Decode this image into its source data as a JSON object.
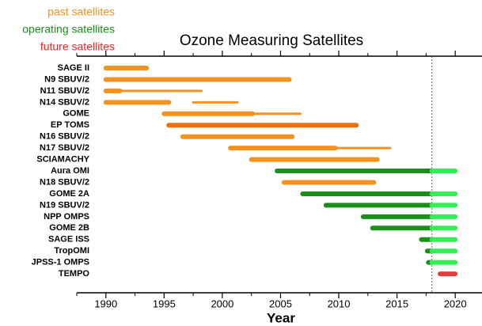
{
  "chart_data": {
    "type": "timeline",
    "title": "Ozone Measuring Satellites",
    "x_label": "Year",
    "xlim": [
      1987.5,
      2022.3
    ],
    "xticks": [
      1990,
      1995,
      2000,
      2005,
      2010,
      2015,
      2020
    ],
    "xminorticks": [
      1987.5,
      1992.5,
      1997.5,
      2002.5,
      2007.5,
      2012.5,
      2017.5,
      2022.5
    ],
    "now_line": 2018,
    "series": [
      {
        "name": "past satellites",
        "color": "#f5921e"
      },
      {
        "name": "operating satellites",
        "color": "#1a8f1a"
      },
      {
        "name": "future satellites",
        "color": "#ee2222"
      }
    ],
    "rows": [
      {
        "label": "SAGE II",
        "segments": [
          {
            "start": 1990,
            "end": 1993.5,
            "color": "#f5921e",
            "width": "thick"
          }
        ]
      },
      {
        "label": "N9 SBUV/2",
        "segments": [
          {
            "start": 1990,
            "end": 2005.75,
            "color": "#f5921e",
            "width": "thick"
          }
        ]
      },
      {
        "label": "N11 SBUV/2",
        "segments": [
          {
            "start": 1990,
            "end": 1991.2,
            "color": "#f5921e",
            "width": "thick"
          },
          {
            "start": 1991.2,
            "end": 1998.2,
            "color": "#f5921e",
            "width": "thin"
          }
        ]
      },
      {
        "label": "N14 SBUV/2",
        "segments": [
          {
            "start": 1990,
            "end": 1995.4,
            "color": "#f5921e",
            "width": "thick"
          },
          {
            "start": 1997.5,
            "end": 2001.3,
            "color": "#f5921e",
            "width": "thin"
          }
        ]
      },
      {
        "label": "GOME",
        "segments": [
          {
            "start": 1995,
            "end": 2002.6,
            "color": "#f5921e",
            "width": "thick"
          },
          {
            "start": 2002.6,
            "end": 2006.7,
            "color": "#f5921e",
            "width": "thin"
          }
        ]
      },
      {
        "label": "EP TOMS",
        "segments": [
          {
            "start": 1995.4,
            "end": 2011.5,
            "color": "#ec700e",
            "width": "thick"
          }
        ]
      },
      {
        "label": "N16 SBUV/2",
        "segments": [
          {
            "start": 1996.6,
            "end": 2006,
            "color": "#f5921e",
            "width": "thick"
          }
        ]
      },
      {
        "label": "N17 SBUV/2",
        "segments": [
          {
            "start": 2000.7,
            "end": 2009.7,
            "color": "#f5921e",
            "width": "thick"
          },
          {
            "start": 2009.7,
            "end": 2014.4,
            "color": "#f5921e",
            "width": "thin"
          }
        ]
      },
      {
        "label": "SCIAMACHY",
        "segments": [
          {
            "start": 2002.5,
            "end": 2013.3,
            "color": "#f5921e",
            "width": "thick"
          }
        ]
      },
      {
        "label": "Aura OMI",
        "segments": [
          {
            "start": 2004.7,
            "end": 2018,
            "color": "#1a8f1a",
            "width": "thick"
          },
          {
            "start": 2018,
            "end": 2020,
            "color": "#33ee55",
            "width": "thick"
          }
        ]
      },
      {
        "label": "N18 SBUV/2",
        "segments": [
          {
            "start": 2005.3,
            "end": 2013,
            "color": "#f5921e",
            "width": "thick"
          }
        ]
      },
      {
        "label": "GOME 2A",
        "segments": [
          {
            "start": 2006.9,
            "end": 2018,
            "color": "#1a8f1a",
            "width": "thick"
          },
          {
            "start": 2018,
            "end": 2020,
            "color": "#33ee55",
            "width": "thick"
          }
        ]
      },
      {
        "label": "N19 SBUV/2",
        "segments": [
          {
            "start": 2008.9,
            "end": 2018,
            "color": "#1a8f1a",
            "width": "thick"
          },
          {
            "start": 2018,
            "end": 2020,
            "color": "#33ee55",
            "width": "thick"
          }
        ]
      },
      {
        "label": "NPP OMPS",
        "segments": [
          {
            "start": 2012.1,
            "end": 2018,
            "color": "#1a8f1a",
            "width": "thick"
          },
          {
            "start": 2018,
            "end": 2020,
            "color": "#33ee55",
            "width": "thick"
          }
        ]
      },
      {
        "label": "GOME 2B",
        "segments": [
          {
            "start": 2012.9,
            "end": 2018,
            "color": "#1a8f1a",
            "width": "thick"
          },
          {
            "start": 2018,
            "end": 2020,
            "color": "#33ee55",
            "width": "thick"
          }
        ]
      },
      {
        "label": "SAGE ISS",
        "segments": [
          {
            "start": 2017.1,
            "end": 2018,
            "color": "#1a8f1a",
            "width": "thick"
          },
          {
            "start": 2018,
            "end": 2020,
            "color": "#33ee55",
            "width": "thick"
          }
        ]
      },
      {
        "label": "TropOMI",
        "segments": [
          {
            "start": 2017.6,
            "end": 2018,
            "color": "#1a8f1a",
            "width": "thick"
          },
          {
            "start": 2018,
            "end": 2020,
            "color": "#33ee55",
            "width": "thick"
          }
        ]
      },
      {
        "label": "JPSS-1 OMPS",
        "segments": [
          {
            "start": 2017.7,
            "end": 2018,
            "color": "#1a8f1a",
            "width": "thick"
          },
          {
            "start": 2018,
            "end": 2020,
            "color": "#33ee55",
            "width": "thick"
          }
        ]
      },
      {
        "label": "TEMPO",
        "segments": [
          {
            "start": 2018.7,
            "end": 2020,
            "color": "#ee3a3a",
            "width": "thick"
          }
        ]
      }
    ]
  }
}
